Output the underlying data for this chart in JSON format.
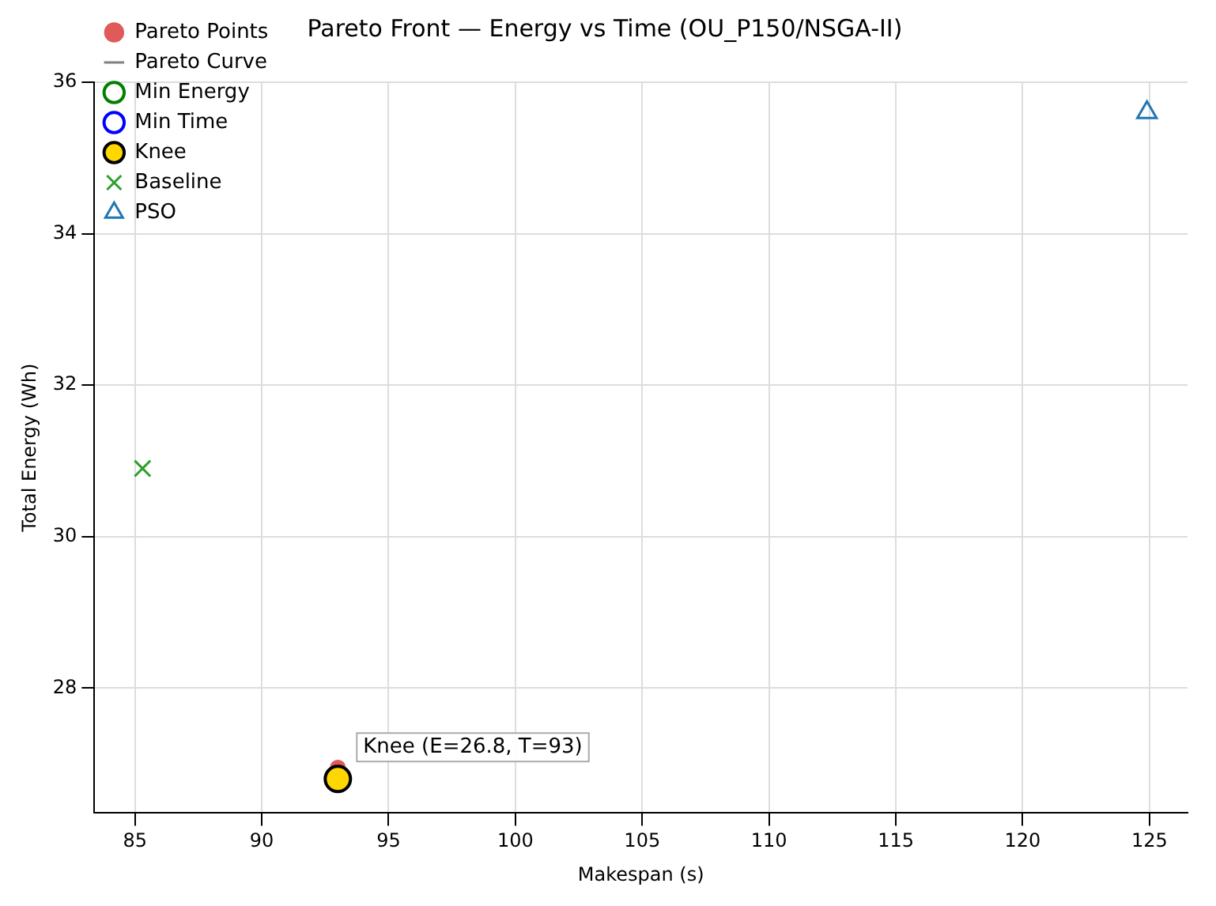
{
  "chart_data": {
    "type": "scatter",
    "title": "Pareto Front — Energy vs Time (OU_P150/NSGA-II)",
    "xlabel": "Makespan (s)",
    "ylabel": "Total Energy (Wh)",
    "xlim": [
      83.4,
      126.5
    ],
    "xticks": [
      85,
      90,
      95,
      100,
      105,
      110,
      115,
      120,
      125
    ],
    "ylim": [
      26.35,
      36.0
    ],
    "yticks": [
      28,
      30,
      32,
      34,
      36
    ],
    "grid": true,
    "legend": "top left",
    "series": [
      {
        "name": "Pareto Points",
        "type": "scatter",
        "marker": "circle",
        "color": "#e05a5a",
        "x": [
          93
        ],
        "values": [
          26.95
        ]
      },
      {
        "name": "Pareto Curve",
        "type": "line",
        "marker": "none",
        "color": "#808080",
        "x": [
          null
        ],
        "values": [
          null
        ]
      },
      {
        "name": "Min Energy",
        "type": "scatter",
        "marker": "circle",
        "color": "#008000",
        "x": [
          null
        ],
        "values": [
          null
        ]
      },
      {
        "name": "Min Time",
        "type": "scatter",
        "marker": "circle",
        "color": "#0000ff",
        "x": [
          null
        ],
        "values": [
          null
        ]
      },
      {
        "name": "Knee",
        "type": "scatter",
        "marker": "circle",
        "color": "#ffd700",
        "x": [
          93
        ],
        "values": [
          26.8
        ]
      },
      {
        "name": "Baseline",
        "type": "scatter",
        "marker": "cross",
        "color": "#2ca02c",
        "x": [
          85.3
        ],
        "values": [
          30.9
        ]
      },
      {
        "name": "PSO",
        "type": "scatter",
        "marker": "triangle",
        "color": "#1f77b4",
        "x": [
          124.9
        ],
        "values": [
          35.6
        ]
      }
    ],
    "annotations": [
      {
        "text": "Knee (E=26.8, T=93)",
        "x": 93,
        "y": 26.8
      }
    ]
  }
}
